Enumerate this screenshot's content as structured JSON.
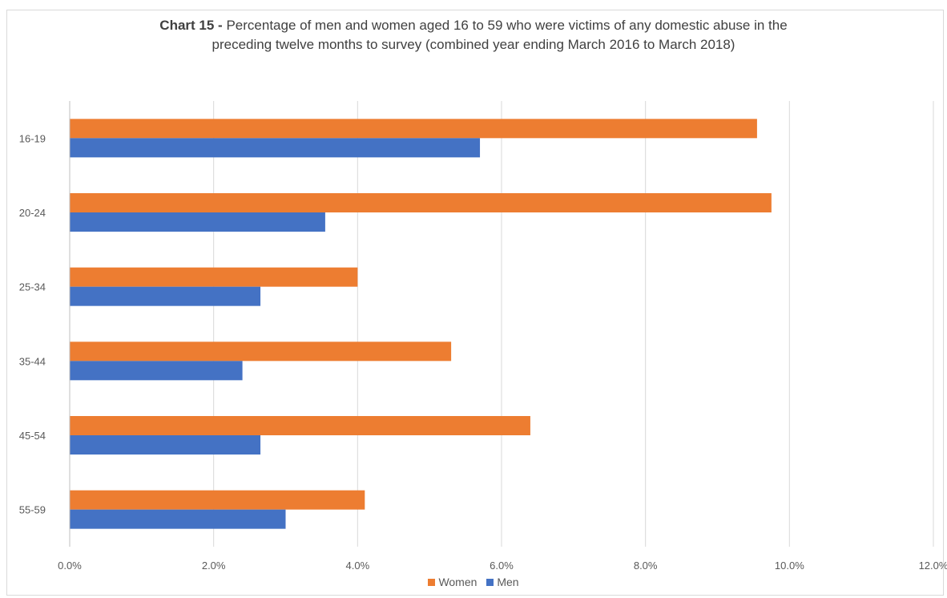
{
  "title_bold": "Chart 15 -",
  "title_rest": "Percentage of men and women aged 16 to 59 who were victims of any domestic abuse in the",
  "title_line2": "preceding twelve months to survey (combined year ending March 2016 to March 2018)",
  "colors": {
    "women": "#ED7D31",
    "men": "#4472C4",
    "grid": "#d9d9d9"
  },
  "chart_data": {
    "type": "bar",
    "orientation": "horizontal",
    "categories": [
      "16-19",
      "20-24",
      "25-34",
      "35-44",
      "45-54",
      "55-59"
    ],
    "series": [
      {
        "name": "Women",
        "values": [
          9.55,
          9.75,
          4.0,
          5.3,
          6.4,
          4.1
        ]
      },
      {
        "name": "Men",
        "values": [
          5.7,
          3.55,
          2.65,
          2.4,
          2.65,
          3.0
        ]
      }
    ],
    "xlim": [
      0,
      12
    ],
    "xticks": [
      "0.0%",
      "2.0%",
      "4.0%",
      "6.0%",
      "8.0%",
      "10.0%",
      "12.0%"
    ],
    "grid": true,
    "legend_position": "bottom"
  }
}
